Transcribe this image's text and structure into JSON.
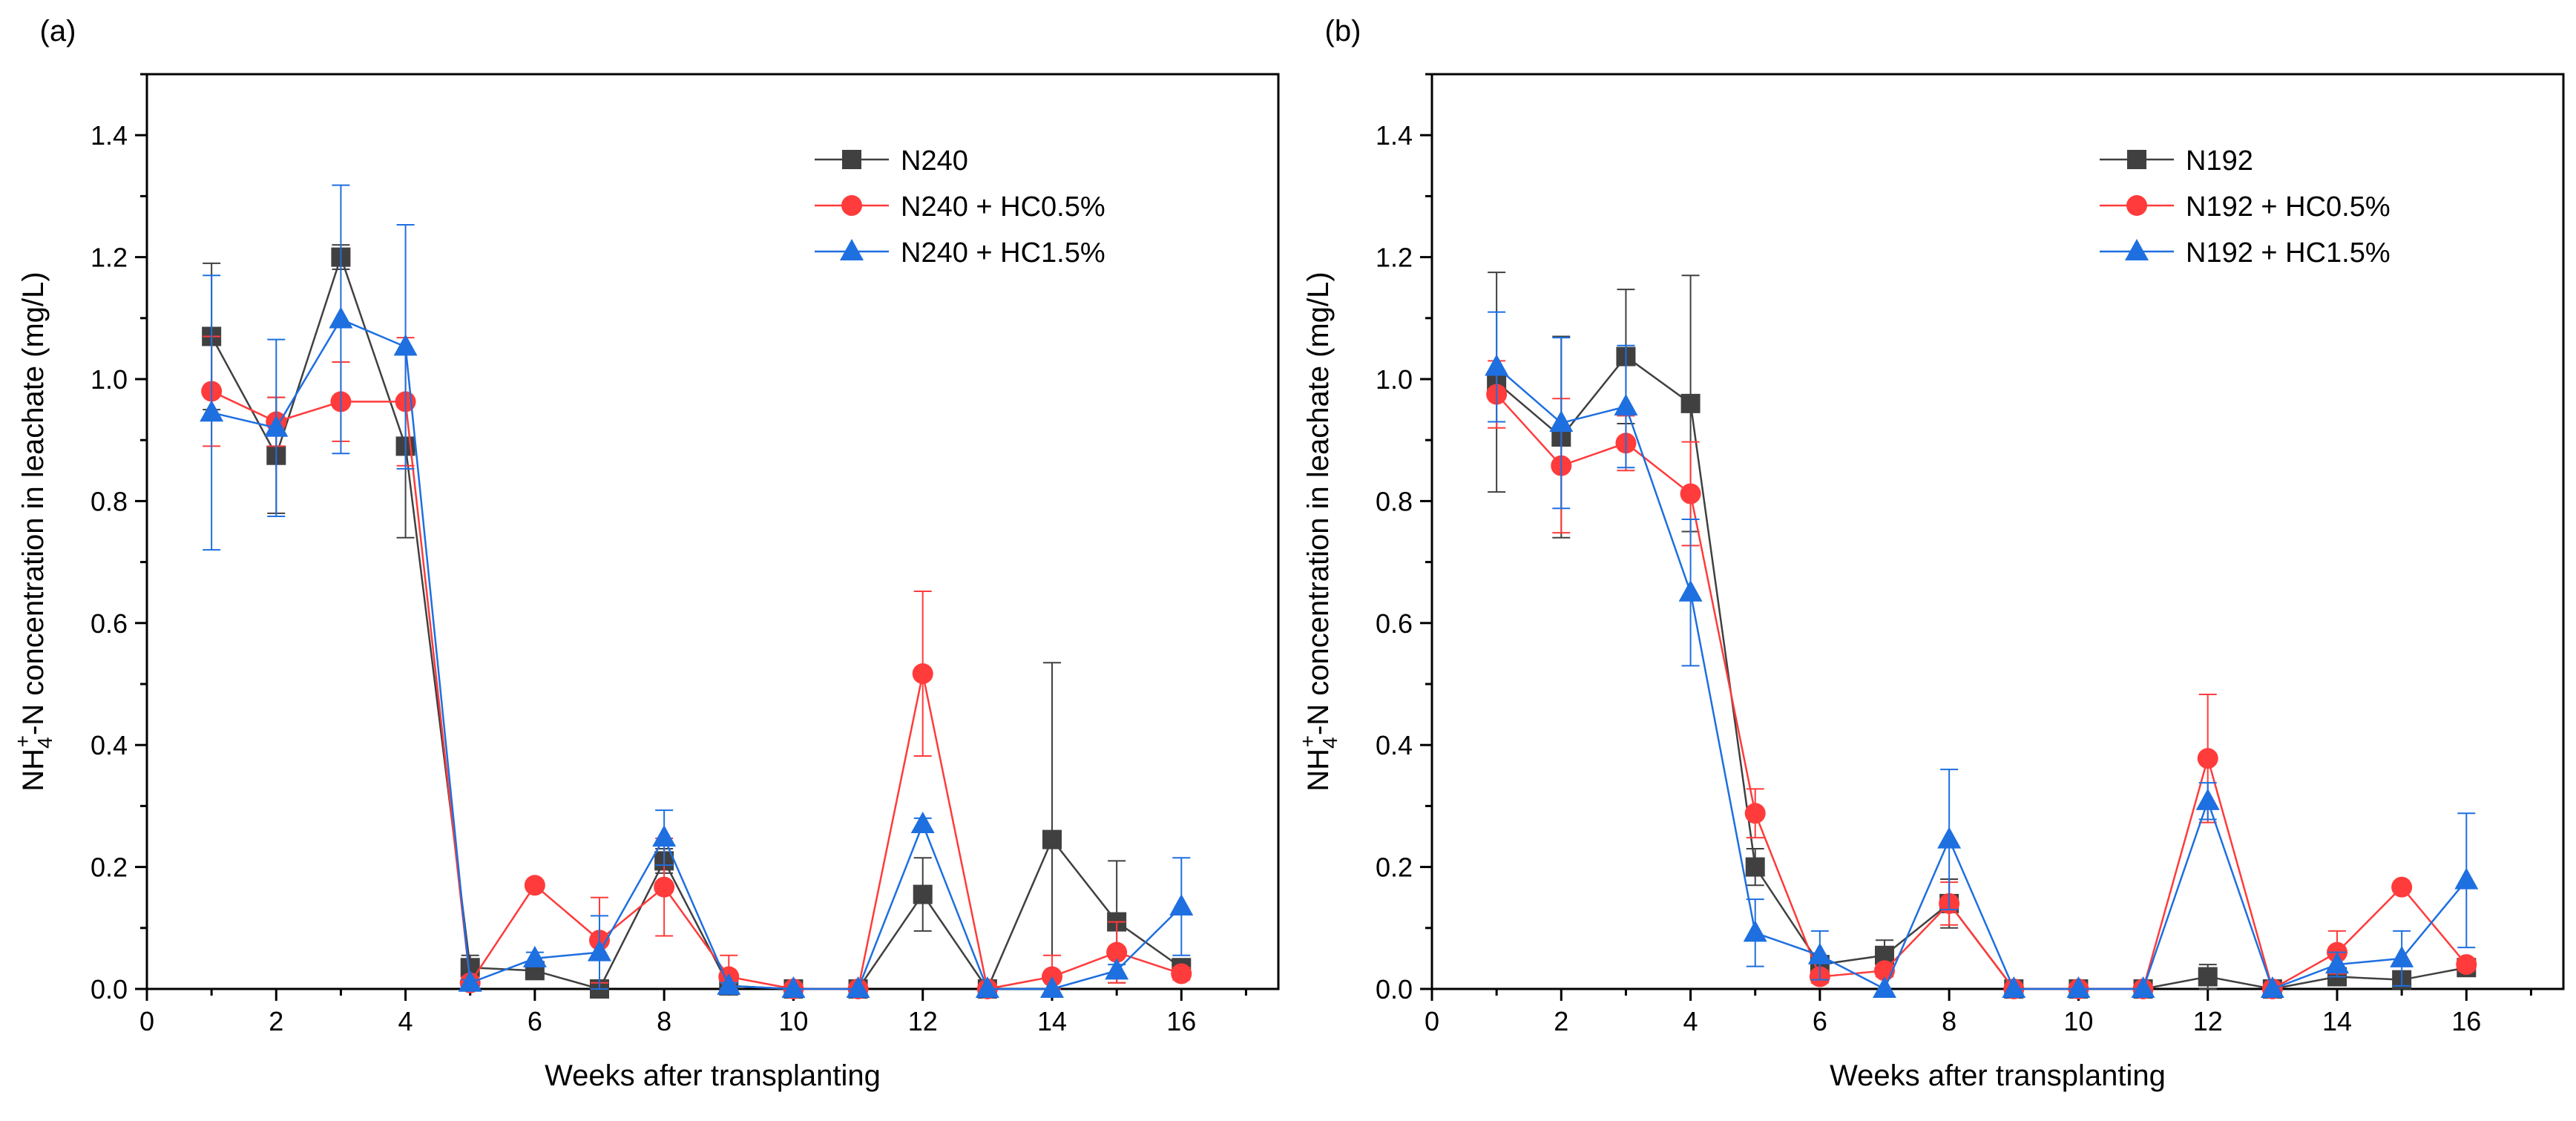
{
  "chart_data": [
    {
      "panel": "(a)",
      "type": "line",
      "xlabel": "Weeks after transplanting",
      "ylabel_parts": [
        "NH",
        "4",
        "+",
        "-N concentration in leachate (mg/L)"
      ],
      "xlim": [
        0,
        17.5
      ],
      "ylim": [
        0,
        1.5
      ],
      "xticks": [
        0,
        2,
        4,
        6,
        8,
        10,
        12,
        14,
        16
      ],
      "yticks": [
        "0.0",
        "0.2",
        "0.4",
        "0.6",
        "0.8",
        "1.0",
        "1.2",
        "1.4"
      ],
      "x": [
        1,
        2,
        3,
        4,
        5,
        6,
        7,
        8,
        9,
        10,
        11,
        12,
        13,
        14,
        15,
        16
      ],
      "legend_position": "top-right",
      "series": [
        {
          "name": "N240",
          "color": "#404040",
          "marker": "square",
          "values": [
            1.07,
            0.875,
            1.2,
            0.89,
            0.035,
            0.03,
            0.0,
            0.21,
            0.005,
            0.0,
            0.0,
            0.155,
            0.0,
            0.245,
            0.11,
            0.035
          ],
          "errors": [
            0.12,
            0.095,
            0.02,
            0.15,
            0.02,
            0.005,
            0.005,
            0.02,
            0.005,
            0.0,
            0.0,
            0.06,
            0.0,
            0.29,
            0.1,
            0.01
          ]
        },
        {
          "name": "N240 + HC0.5%",
          "color": "#ff3b3b",
          "marker": "circle",
          "values": [
            0.98,
            0.93,
            0.963,
            0.963,
            0.01,
            0.17,
            0.08,
            0.167,
            0.02,
            0.0,
            0.0,
            0.517,
            0.0,
            0.02,
            0.06,
            0.025
          ],
          "errors": [
            0.09,
            0.04,
            0.065,
            0.105,
            0.01,
            0.005,
            0.07,
            0.08,
            0.035,
            0.0,
            0.0,
            0.135,
            0.0,
            0.035,
            0.05,
            0.01
          ]
        },
        {
          "name": "N240 + HC1.5%",
          "color": "#1e6fe0",
          "marker": "triangle",
          "values": [
            0.945,
            0.92,
            1.098,
            1.053,
            0.01,
            0.05,
            0.06,
            0.248,
            0.005,
            0.0,
            0.0,
            0.27,
            0.0,
            0.0,
            0.03,
            0.135
          ],
          "errors": [
            0.225,
            0.145,
            0.22,
            0.2,
            0.005,
            0.01,
            0.06,
            0.045,
            0.005,
            0.0,
            0.0,
            0.01,
            0.0,
            0.0,
            0.01,
            0.08
          ]
        }
      ]
    },
    {
      "panel": "(b)",
      "type": "line",
      "xlabel": "Weeks after transplanting",
      "ylabel_parts": [
        "NH",
        "4",
        "+",
        "-N concentration in leachate (mg/L)"
      ],
      "xlim": [
        0,
        17.5
      ],
      "ylim": [
        0,
        1.5
      ],
      "xticks": [
        0,
        2,
        4,
        6,
        8,
        10,
        12,
        14,
        16
      ],
      "yticks": [
        "0.0",
        "0.2",
        "0.4",
        "0.6",
        "0.8",
        "1.0",
        "1.2",
        "1.4"
      ],
      "x": [
        1,
        2,
        3,
        4,
        5,
        6,
        7,
        8,
        9,
        10,
        11,
        12,
        13,
        14,
        15,
        16
      ],
      "legend_position": "top-right",
      "series": [
        {
          "name": "N192",
          "color": "#404040",
          "marker": "square",
          "values": [
            0.995,
            0.905,
            1.037,
            0.96,
            0.2,
            0.04,
            0.055,
            0.14,
            0.0,
            0.0,
            0.0,
            0.02,
            0.0,
            0.02,
            0.015,
            0.035
          ],
          "errors": [
            0.18,
            0.165,
            0.11,
            0.21,
            0.03,
            0.01,
            0.025,
            0.04,
            0.0,
            0.0,
            0.0,
            0.02,
            0.0,
            0.01,
            0.005,
            0.01
          ]
        },
        {
          "name": "N192 + HC0.5%",
          "color": "#ff3b3b",
          "marker": "circle",
          "values": [
            0.975,
            0.858,
            0.895,
            0.812,
            0.288,
            0.02,
            0.03,
            0.14,
            0.0,
            0.0,
            0.0,
            0.378,
            0.0,
            0.06,
            0.167,
            0.04
          ],
          "errors": [
            0.055,
            0.11,
            0.045,
            0.085,
            0.04,
            0.01,
            0.01,
            0.035,
            0.0,
            0.0,
            0.0,
            0.105,
            0.0,
            0.035,
            0.005,
            0.01
          ]
        },
        {
          "name": "N192 + HC1.5%",
          "color": "#1e6fe0",
          "marker": "triangle",
          "values": [
            1.02,
            0.928,
            0.955,
            0.65,
            0.092,
            0.055,
            0.0,
            0.245,
            0.0,
            0.0,
            0.0,
            0.308,
            0.0,
            0.04,
            0.05,
            0.178
          ],
          "errors": [
            0.09,
            0.14,
            0.1,
            0.12,
            0.055,
            0.04,
            0.0,
            0.115,
            0.0,
            0.0,
            0.0,
            0.03,
            0.0,
            0.02,
            0.045,
            0.11
          ]
        }
      ]
    }
  ]
}
